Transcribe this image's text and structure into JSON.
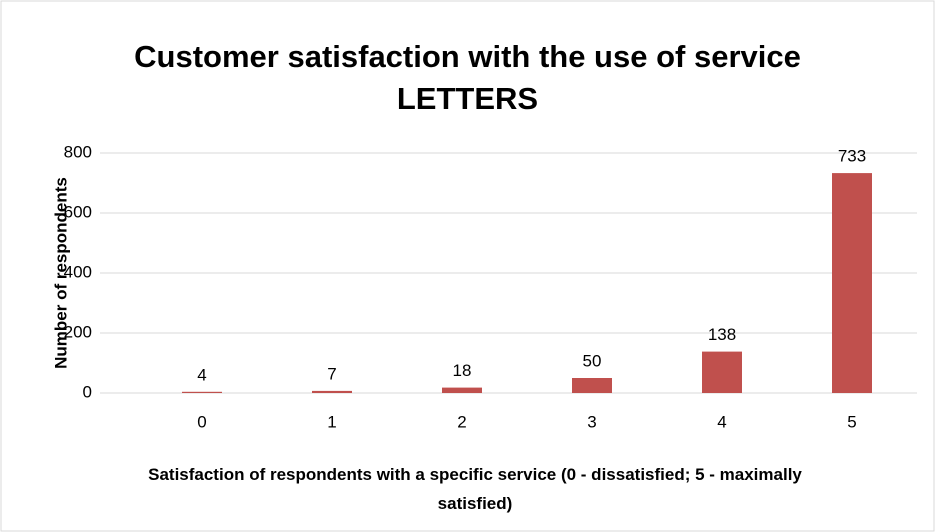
{
  "chart_data": {
    "type": "bar",
    "title": "Customer satisfaction with the use of service LETTERS",
    "x_label": "Satisfaction of respondents with a specific service (0 - dissatisfied; 5 - maximally satisfied)",
    "y_label": "Number of respondents",
    "categories": [
      "0",
      "1",
      "2",
      "3",
      "4",
      "5"
    ],
    "values": [
      4,
      7,
      18,
      50,
      138,
      733
    ],
    "color": "#c0504d",
    "ylim": [
      0,
      800
    ],
    "yticks": [
      0,
      200,
      400,
      600,
      800
    ],
    "grid": true
  }
}
